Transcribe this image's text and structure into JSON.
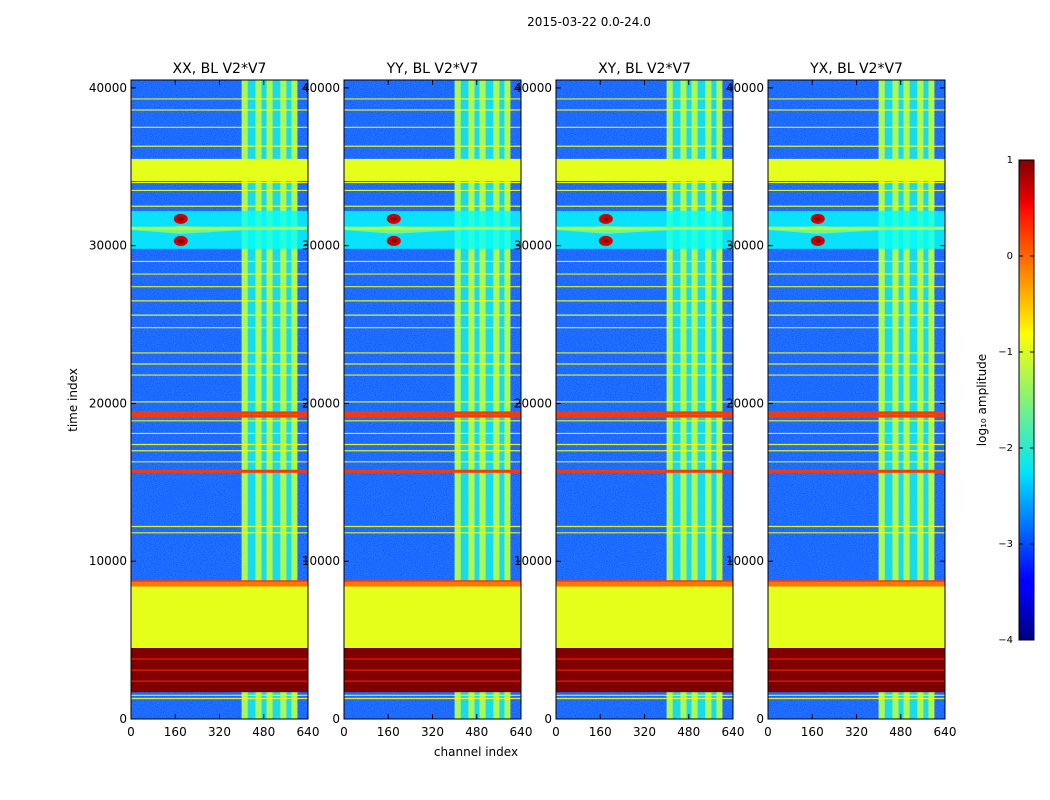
{
  "chart_data": {
    "type": "heatmap",
    "suptitle": "2015-03-22 0.0-24.0",
    "xlabel": "channel index",
    "ylabel": "time index",
    "xlim": [
      0,
      640
    ],
    "ylim": [
      0,
      40500
    ],
    "x_ticks": [
      0,
      160,
      320,
      480,
      640
    ],
    "y_ticks": [
      0,
      10000,
      20000,
      30000,
      40000
    ],
    "colormap": "jet",
    "colorbar": {
      "label": "log₁₀ amplitude",
      "range": [
        -4,
        1
      ],
      "ticks": [
        1,
        0,
        -1,
        -2,
        -3,
        -4
      ],
      "tick_labels": [
        "1",
        "0",
        "−1",
        "−2",
        "−3",
        "−4"
      ]
    },
    "panels": [
      {
        "title": "XX, BL V2*V7",
        "polarization": "XX"
      },
      {
        "title": "YY, BL V2*V7",
        "polarization": "YY"
      },
      {
        "title": "XY, BL V2*V7",
        "polarization": "XY"
      },
      {
        "title": "YX, BL V2*V7",
        "polarization": "YX"
      }
    ],
    "features": {
      "saturated_band_time": [
        1700,
        4500
      ],
      "flat_bands_time": [
        [
          4500,
          8400
        ],
        [
          34100,
          35500
        ]
      ],
      "flat_band_log_amplitude": -1.0,
      "saturated_log_amplitude": 1.0,
      "rfi_channel_range": [
        400,
        600
      ],
      "rfi_columns": [
        400,
        450,
        490,
        540,
        580
      ],
      "bright_stripes_time": [
        8700,
        15700,
        19200,
        19400
      ],
      "thin_stripes_time": [
        1300,
        1500,
        11800,
        12200,
        16300,
        17000,
        17400,
        18100,
        18900,
        20100,
        21800,
        22500,
        23200,
        24800,
        25600,
        26500,
        27400,
        28200,
        29000,
        32500,
        33500,
        34000,
        36300,
        37500,
        38600,
        39300
      ],
      "flare_time_range": [
        29800,
        32200
      ],
      "flare_center": [
        180,
        31000
      ],
      "background_log_amplitude": -3.0
    }
  }
}
